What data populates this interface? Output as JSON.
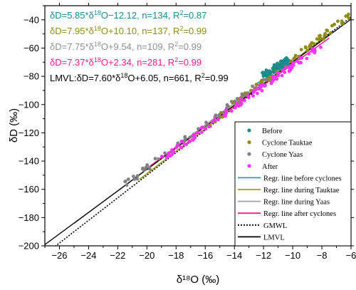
{
  "chart_data": {
    "type": "scatter",
    "xlabel": "δ¹⁸O (‰)",
    "ylabel": "δD (‰)",
    "xlim": [
      -27,
      -6
    ],
    "ylim": [
      -200,
      -30
    ],
    "xticks": [
      -26,
      -24,
      -22,
      -20,
      -18,
      -16,
      -14,
      -12,
      -10,
      -8,
      -6
    ],
    "yticks": [
      -200,
      -180,
      -160,
      -140,
      -120,
      -100,
      -80,
      -60,
      -40
    ],
    "grid": false,
    "legend_position": "bottom-right",
    "colors": {
      "before": "#1a8c8c",
      "tauktae": "#8c8c16",
      "yaas": "#808080",
      "after": "#ff33ff",
      "regr_before": "#1f9fb0",
      "regr_tauktae": "#9e9e1a",
      "regr_yaas": "#a0a0a0",
      "regr_after": "#ff1a8c",
      "gmwl": "#000000",
      "lmvl": "#000000"
    },
    "equations": [
      {
        "pre": "δD=5.85*δ",
        "sup": "18",
        "post": "O−12.12, n=134, R",
        "sup2": "2",
        "post2": "=0.87",
        "color": "#1a8c8c"
      },
      {
        "pre": "δD=7.95*δ",
        "sup": "18",
        "post": "O+10.10, n=137, R",
        "sup2": "2",
        "post2": "=0.99",
        "color": "#8c8c16"
      },
      {
        "pre": "δD=7.75*δ",
        "sup": "18",
        "post": "O+9.54, n=109, R",
        "sup2": "2",
        "post2": "=0.99",
        "color": "#909090"
      },
      {
        "pre": "δD=7.37*δ",
        "sup": "18",
        "post": "O+2.34, n=281, R",
        "sup2": "2",
        "post2": "=0.99",
        "color": "#ff1a8c"
      },
      {
        "pre": "LMVL:δD=7.60*δ",
        "sup": "18",
        "post": "O+6.05, n=661, R",
        "sup2": "2",
        "post2": "=0.99",
        "color": "#000000"
      }
    ],
    "series": [
      {
        "name": "Before",
        "kind": "scatter",
        "color": "#1a8c8c",
        "center": [
          -11.2,
          -74
        ],
        "spread": 0.9,
        "slope": 5.85,
        "n": 70
      },
      {
        "name": "Cyclone Tauktae",
        "kind": "scatter",
        "color": "#8c8c16",
        "center": [
          -10.5,
          -72
        ],
        "spread": 5.2,
        "slope": 7.95,
        "n": 80
      },
      {
        "name": "Cyclone Yaas",
        "kind": "scatter",
        "color": "#808080",
        "center": [
          -16,
          -114
        ],
        "spread": 5.5,
        "slope": 7.75,
        "n": 80
      },
      {
        "name": "After",
        "kind": "scatter",
        "color": "#ff33ff",
        "center": [
          -13.5,
          -98
        ],
        "spread": 5.5,
        "slope": 7.37,
        "n": 110
      }
    ],
    "lines": [
      {
        "name": "Regr. line before cyclones",
        "slope": 5.85,
        "intercept": -12.12,
        "x": [
          -12.5,
          -10.5
        ],
        "color": "#1f9fb0",
        "dash": false
      },
      {
        "name": "Regr. line during Tauktae",
        "slope": 7.95,
        "intercept": 10.1,
        "x": [
          -20.5,
          -7.5
        ],
        "color": "#9e9e1a",
        "dash": false
      },
      {
        "name": "Regr. line during Yaas",
        "slope": 7.75,
        "intercept": 9.54,
        "x": [
          -25,
          -10
        ],
        "color": "#a0a0a0",
        "dash": false
      },
      {
        "name": "Regr. line after cyclones",
        "slope": 7.37,
        "intercept": 2.34,
        "x": [
          -20,
          -7.5
        ],
        "color": "#ff1a8c",
        "dash": false
      },
      {
        "name": "GMWL",
        "slope": 8,
        "intercept": 10,
        "x": [
          -26.3,
          -6
        ],
        "color": "#000000",
        "dash": true
      },
      {
        "name": "LMVL",
        "slope": 7.6,
        "intercept": 6.05,
        "x": [
          -27,
          -6
        ],
        "color": "#000000",
        "dash": false
      }
    ],
    "legend": [
      {
        "label": "Before",
        "kind": "dot",
        "color": "#1a8c8c"
      },
      {
        "label": "Cyclone Tauktae",
        "kind": "dot",
        "color": "#8c8c16"
      },
      {
        "label": "Cyclone Yaas",
        "kind": "dot",
        "color": "#808080"
      },
      {
        "label": "After",
        "kind": "dot",
        "color": "#ff33ff"
      },
      {
        "label": "Regr. line before cyclones",
        "kind": "line",
        "color": "#1f9fb0",
        "dash": false
      },
      {
        "label": "Regr. line during Tauktae",
        "kind": "line",
        "color": "#9e9e1a",
        "dash": false
      },
      {
        "label": "Regr. line during Yaas",
        "kind": "line",
        "color": "#a0a0a0",
        "dash": false
      },
      {
        "label": "Regr. line after cyclones",
        "kind": "line",
        "color": "#ff1a8c",
        "dash": false
      },
      {
        "label": "GMWL",
        "kind": "line",
        "color": "#000000",
        "dash": true
      },
      {
        "label": "LMVL",
        "kind": "line",
        "color": "#000000",
        "dash": false
      }
    ]
  }
}
